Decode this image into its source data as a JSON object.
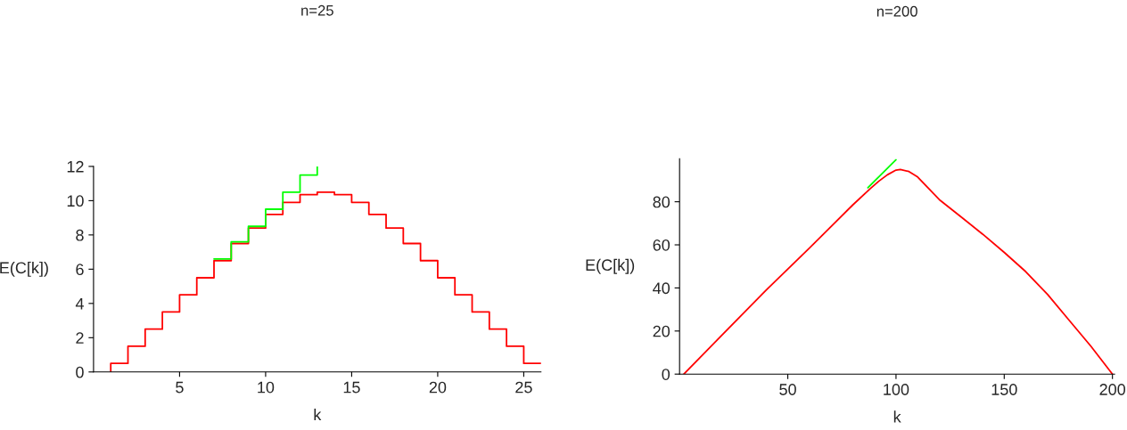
{
  "chart_data": [
    {
      "type": "step",
      "title": "n=25",
      "xlabel": "k",
      "ylabel": "E(C[k])",
      "xlim": [
        0,
        26
      ],
      "xticks": [
        5,
        10,
        15,
        20,
        25
      ],
      "ylim": [
        0,
        12
      ],
      "yticks": [
        0,
        2,
        4,
        6,
        8,
        10,
        12
      ],
      "grid": false,
      "legend": false,
      "series": [
        {
          "color": "#ff0000",
          "x": [
            1,
            1,
            2,
            3,
            4,
            5,
            6,
            7,
            8,
            9,
            10,
            11,
            12,
            13,
            14,
            15,
            16,
            17,
            18,
            19,
            20,
            21,
            22,
            23,
            24,
            25,
            26
          ],
          "values": [
            0,
            0.5,
            1.5,
            2.5,
            3.5,
            4.5,
            5.5,
            6.5,
            7.5,
            8.4,
            9.2,
            9.9,
            10.35,
            10.5,
            10.35,
            9.9,
            9.2,
            8.4,
            7.5,
            6.5,
            5.5,
            4.5,
            3.5,
            2.5,
            1.5,
            0.5,
            0.5
          ]
        },
        {
          "color": "#00ff00",
          "x": [
            7,
            8,
            9,
            10,
            11,
            12,
            13
          ],
          "values": [
            6.6,
            7.6,
            8.5,
            9.5,
            10.5,
            11.5,
            12
          ]
        }
      ]
    },
    {
      "type": "line",
      "title": "n=200",
      "xlabel": "k",
      "ylabel": "E(C[k])",
      "xlim": [
        0,
        201
      ],
      "xticks": [
        50,
        100,
        150,
        200
      ],
      "ylim": [
        0,
        100
      ],
      "yticks": [
        0,
        20,
        40,
        60,
        80
      ],
      "grid": false,
      "legend": false,
      "series": [
        {
          "color": "#00ff00",
          "x": [
            87,
            100
          ],
          "values": [
            86.5,
            99.5
          ]
        },
        {
          "color": "#ff0000",
          "x": [
            2,
            20,
            40,
            60,
            80,
            88,
            92,
            96,
            100,
            102,
            106,
            110,
            120,
            130,
            140,
            150,
            160,
            170,
            180,
            190,
            200
          ],
          "values": [
            0,
            18.5,
            39,
            58.5,
            78.5,
            86,
            89.5,
            92.5,
            94.7,
            95,
            94,
            91.5,
            81,
            73,
            65,
            56.5,
            47.5,
            37,
            25,
            13,
            0
          ]
        }
      ]
    }
  ]
}
